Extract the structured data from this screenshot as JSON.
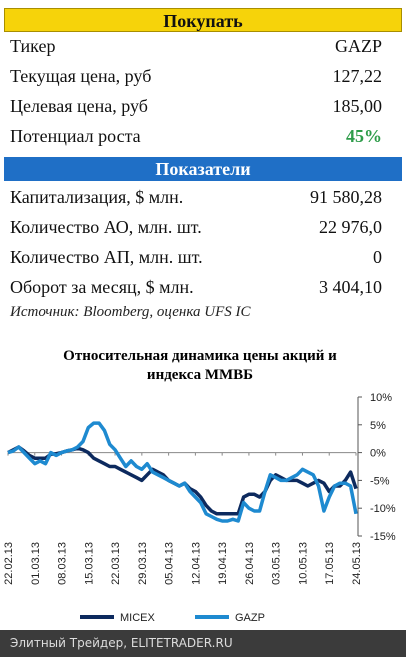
{
  "buy_table": {
    "title": "Покупать",
    "rows": [
      [
        "Тикер",
        "GAZP"
      ],
      [
        "Текущая цена, руб",
        "127,22"
      ],
      [
        "Целевая цена, руб",
        "185,00"
      ],
      [
        "Потенциал роста",
        "45%"
      ]
    ]
  },
  "indicators_table": {
    "title": "Показатели",
    "rows": [
      [
        "Капитализация, $ млн.",
        "91 580,28"
      ],
      [
        "Количество АО, млн. шт.",
        "22 976,0"
      ],
      [
        "Количество АП, млн. шт.",
        "0"
      ],
      [
        "Оборот за месяц, $ млн.",
        "3 404,10"
      ]
    ]
  },
  "source": "Источник: Bloomberg, оценка UFS IC",
  "chart_data": {
    "type": "line",
    "title": "Относительная динамика цены акций и индекса ММВБ",
    "categories": [
      "22.02.13",
      null,
      null,
      null,
      null,
      "01.03.13",
      null,
      null,
      null,
      null,
      "08.03.13",
      null,
      null,
      null,
      null,
      "15.03.13",
      null,
      null,
      null,
      null,
      "22.03.13",
      null,
      null,
      null,
      null,
      "29.03.13",
      null,
      null,
      null,
      null,
      "05.04.13",
      null,
      null,
      null,
      null,
      "12.04.13",
      null,
      null,
      null,
      null,
      "19.04.13",
      null,
      null,
      null,
      null,
      "26.04.13",
      null,
      null,
      null,
      null,
      "03.05.13",
      null,
      null,
      null,
      null,
      "10.05.13",
      null,
      null,
      null,
      null,
      "17.05.13",
      null,
      null,
      null,
      null,
      "24.05.13"
    ],
    "series": [
      {
        "name": "MICEX",
        "color": "#0d2a5e",
        "values": [
          0,
          0.5,
          1,
          0.3,
          -0.5,
          -1,
          -1,
          -1,
          -0.3,
          -0.2,
          0,
          0.3,
          0.5,
          0.8,
          0.5,
          0,
          -1,
          -1.5,
          -2,
          -2.5,
          -2.5,
          -3,
          -3.5,
          -4,
          -4.5,
          -5,
          -4,
          -3,
          -3.5,
          -4,
          -5,
          -5.5,
          -6,
          -5.5,
          -6.5,
          -7,
          -8,
          -9.5,
          -10.5,
          -11,
          -11,
          -11,
          -11,
          -11,
          -8,
          -7.5,
          -7.5,
          -8,
          -7,
          -5,
          -4,
          -4.5,
          -5,
          -5,
          -5,
          -5.5,
          -6,
          -5.5,
          -5,
          -5.5,
          -7,
          -6,
          -6,
          -5,
          -3.5,
          -6.5
        ]
      },
      {
        "name": "GAZP",
        "color": "#1e8ad0",
        "values": [
          0,
          0.3,
          1,
          0,
          -1,
          -2,
          -1.5,
          -2,
          0,
          -0.5,
          0,
          0.3,
          0.5,
          1,
          2,
          4.5,
          5.3,
          5.3,
          4,
          1.5,
          0.5,
          -1,
          -2.5,
          -1.5,
          -2.5,
          -3,
          -2,
          -3.5,
          -4,
          -4.5,
          -5,
          -5.5,
          -6,
          -5.5,
          -7,
          -8,
          -9,
          -11,
          -11.5,
          -12,
          -12.3,
          -12.3,
          -12,
          -12.3,
          -9,
          -10,
          -10.5,
          -10.5,
          -7,
          -4,
          -4.5,
          -5,
          -5,
          -4.5,
          -4,
          -3,
          -3.5,
          -4,
          -6,
          -10.5,
          -8,
          -6,
          -5.5,
          -5.5,
          -6,
          -11
        ]
      }
    ],
    "ylim": [
      -15,
      10
    ],
    "yticks": [
      {
        "value": 10,
        "label": "10%"
      },
      {
        "value": 5,
        "label": "5%"
      },
      {
        "value": 0,
        "label": "0%"
      },
      {
        "value": -5,
        "label": "-5%"
      },
      {
        "value": -10,
        "label": "-10%"
      },
      {
        "value": -15,
        "label": "-15%"
      }
    ]
  },
  "footer": "Элитный Трейдер, ELITETRADER.RU"
}
